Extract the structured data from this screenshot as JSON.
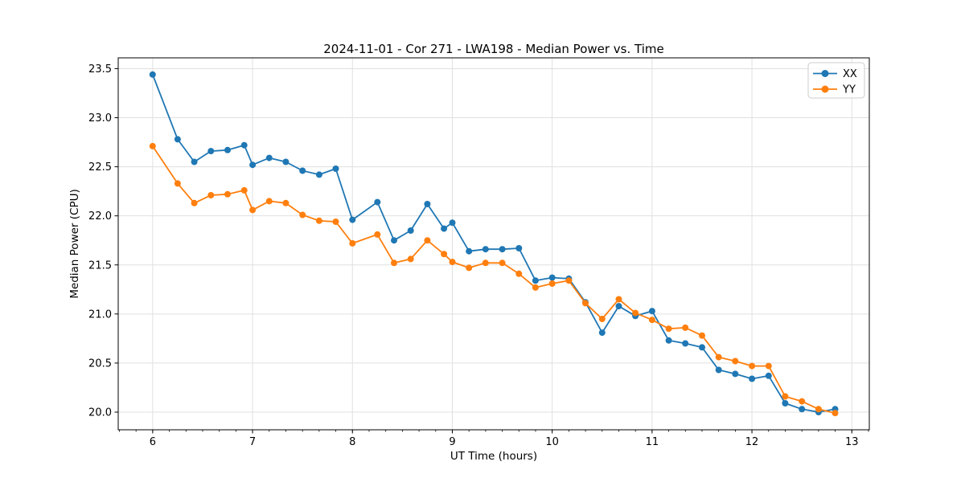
{
  "figure": {
    "background": "#ffffff",
    "title": "2024-11-01 - Cor 271 - LWA198 - Median Power vs. Time"
  },
  "chart_data": {
    "type": "line",
    "title": "2024-11-01 - Cor 271 - LWA198 - Median Power vs. Time",
    "xlabel": "UT Time (hours)",
    "ylabel": "Median Power (CPU)",
    "grid": true,
    "legend_position": "upper right",
    "xlim": [
      5.655,
      13.175
    ],
    "ylim": [
      19.82,
      23.61
    ],
    "xticks": [
      {
        "v": 6,
        "label": "6"
      },
      {
        "v": 7,
        "label": "7"
      },
      {
        "v": 8,
        "label": "8"
      },
      {
        "v": 9,
        "label": "9"
      },
      {
        "v": 10,
        "label": "10"
      },
      {
        "v": 11,
        "label": "11"
      },
      {
        "v": 12,
        "label": "12"
      },
      {
        "v": 13,
        "label": "13"
      }
    ],
    "yticks": [
      {
        "v": 20.0,
        "label": "20.0"
      },
      {
        "v": 20.5,
        "label": "20.5"
      },
      {
        "v": 21.0,
        "label": "21.0"
      },
      {
        "v": 21.5,
        "label": "21.5"
      },
      {
        "v": 22.0,
        "label": "22.0"
      },
      {
        "v": 22.5,
        "label": "22.5"
      },
      {
        "v": 23.0,
        "label": "23.0"
      },
      {
        "v": 23.5,
        "label": "23.5"
      }
    ],
    "x_minor_step": 0.16667,
    "x": [
      6.0,
      6.25,
      6.417,
      6.583,
      6.75,
      6.917,
      7.0,
      7.167,
      7.333,
      7.5,
      7.667,
      7.833,
      8.0,
      8.25,
      8.417,
      8.583,
      8.75,
      8.917,
      9.0,
      9.167,
      9.333,
      9.5,
      9.667,
      9.833,
      10.0,
      10.167,
      10.333,
      10.5,
      10.667,
      10.833,
      11.0,
      11.167,
      11.333,
      11.5,
      11.667,
      11.833,
      12.0,
      12.167,
      12.333,
      12.5,
      12.667,
      12.833
    ],
    "series": [
      {
        "name": "XX",
        "color": "#1f77b4",
        "values": [
          23.44,
          22.78,
          22.55,
          22.66,
          22.67,
          22.72,
          22.52,
          22.59,
          22.55,
          22.46,
          22.42,
          22.48,
          21.96,
          22.14,
          21.75,
          21.85,
          22.12,
          21.87,
          21.93,
          21.64,
          21.66,
          21.66,
          21.67,
          21.34,
          21.37,
          21.36,
          21.12,
          20.81,
          21.08,
          20.98,
          21.03,
          20.73,
          20.7,
          20.66,
          20.43,
          20.39,
          20.34,
          20.37,
          20.09,
          20.03,
          20.0,
          20.03
        ]
      },
      {
        "name": "YY",
        "color": "#ff7f0e",
        "values": [
          22.71,
          22.33,
          22.13,
          22.21,
          22.22,
          22.26,
          22.06,
          22.15,
          22.13,
          22.01,
          21.95,
          21.94,
          21.72,
          21.81,
          21.52,
          21.56,
          21.75,
          21.61,
          21.53,
          21.47,
          21.52,
          21.52,
          21.41,
          21.27,
          21.31,
          21.34,
          21.11,
          20.95,
          21.15,
          21.01,
          20.94,
          20.85,
          20.86,
          20.78,
          20.56,
          20.52,
          20.47,
          20.47,
          20.16,
          20.11,
          20.03,
          19.99
        ]
      }
    ],
    "style": {
      "grid_color": "#e0e0e0",
      "spine_color": "#000000",
      "line_width": 1.8,
      "marker_radius": 4,
      "legend_border": "#cccccc",
      "legend_bg": "#ffffff"
    }
  }
}
